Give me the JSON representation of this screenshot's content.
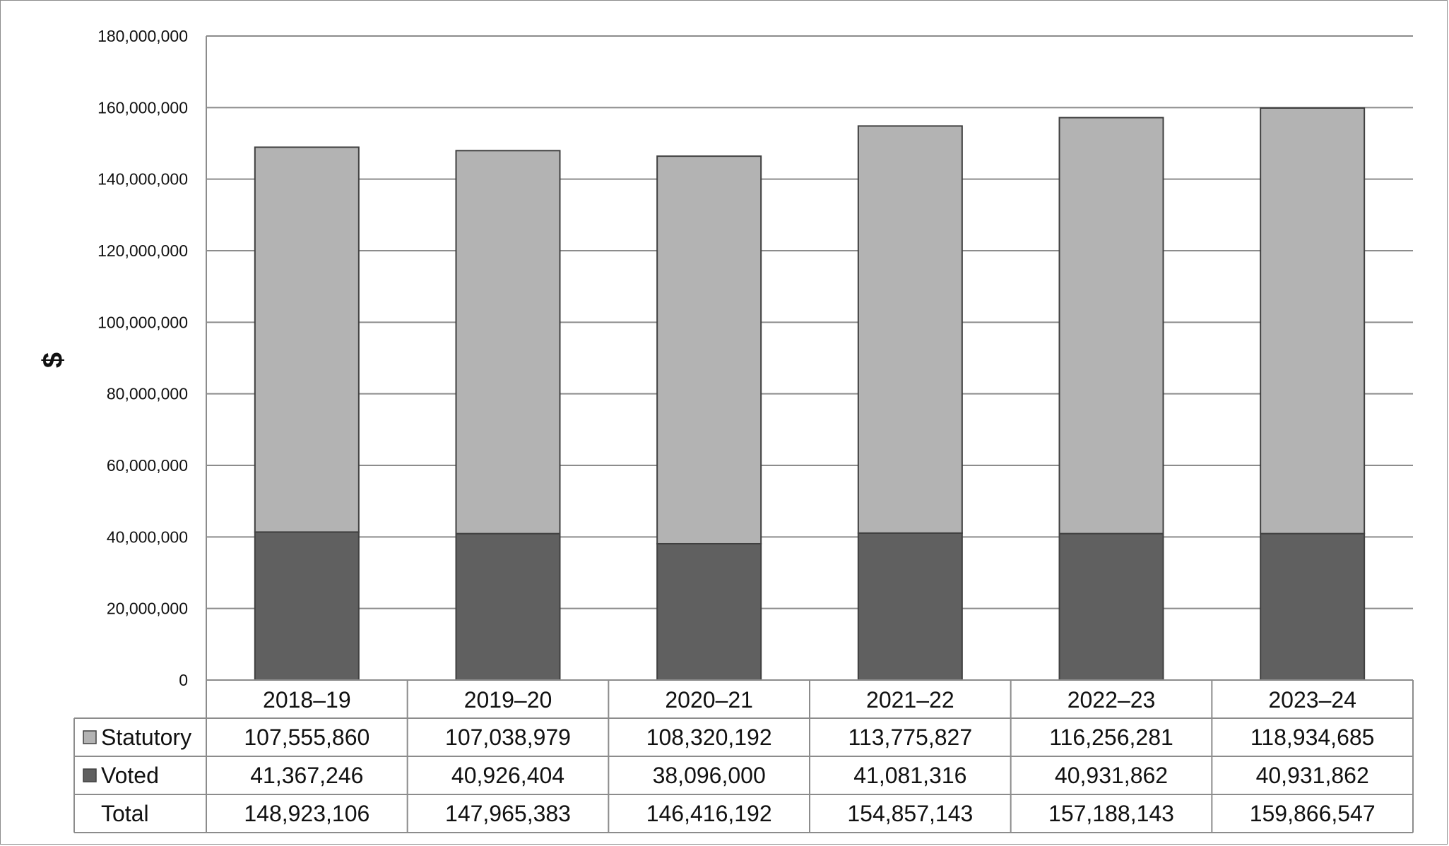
{
  "chart_data": {
    "type": "bar",
    "stacked": true,
    "categories": [
      "2018–19",
      "2019–20",
      "2020–21",
      "2021–22",
      "2022–23",
      "2023–24"
    ],
    "series": [
      {
        "name": "Voted",
        "color": "#606060",
        "values": [
          41367246,
          40926404,
          38096000,
          41081316,
          40931862,
          40931862
        ]
      },
      {
        "name": "Statutory",
        "color": "#b3b3b3",
        "values": [
          107555860,
          107038979,
          108320192,
          113775827,
          116256281,
          118934685
        ]
      }
    ],
    "xlabel": "",
    "ylabel": "$",
    "ylim": [
      0,
      180000000
    ],
    "yticks": [
      0,
      20000000,
      40000000,
      60000000,
      80000000,
      100000000,
      120000000,
      140000000,
      160000000,
      180000000
    ],
    "ytick_labels": [
      "0",
      "20,000,000",
      "40,000,000",
      "60,000,000",
      "80,000,000",
      "100,000,000",
      "120,000,000",
      "140,000,000",
      "160,000,000",
      "180,000,000"
    ],
    "grid": true,
    "legend": "data-table",
    "data_table": {
      "rows": [
        {
          "label": "Statutory",
          "legend_key": true,
          "color": "#b3b3b3",
          "values": [
            "107,555,860",
            "107,038,979",
            "108,320,192",
            "113,775,827",
            "116,256,281",
            "118,934,685"
          ]
        },
        {
          "label": "Voted",
          "legend_key": true,
          "color": "#606060",
          "values": [
            "41,367,246",
            "40,926,404",
            "38,096,000",
            "41,081,316",
            "40,931,862",
            "40,931,862"
          ]
        },
        {
          "label": "Total",
          "legend_key": false,
          "values": [
            "148,923,106",
            "147,965,383",
            "146,416,192",
            "154,857,143",
            "157,188,143",
            "159,866,547"
          ]
        }
      ]
    }
  }
}
